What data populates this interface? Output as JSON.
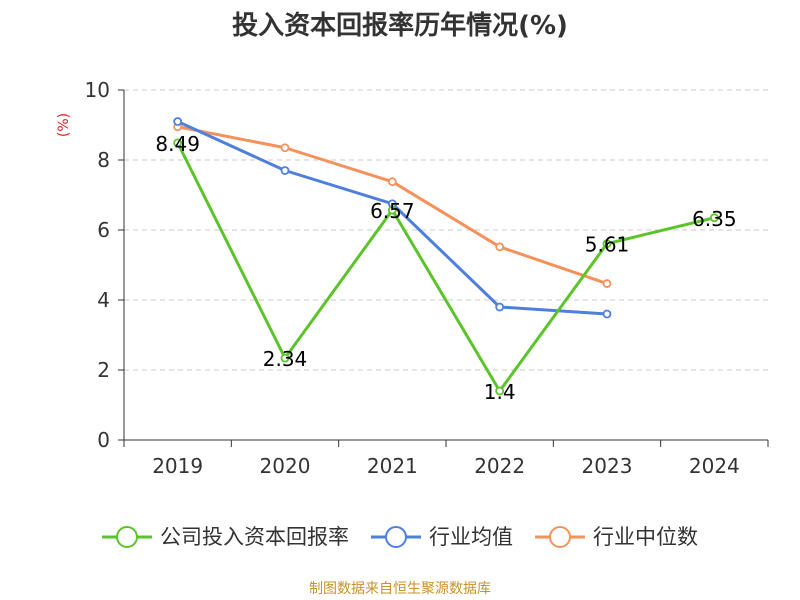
{
  "chart_data": {
    "type": "line",
    "title": "投入资本回报率历年情况(%)",
    "ylabel": "(%)",
    "xlabel": "",
    "categories": [
      "2019",
      "2020",
      "2021",
      "2022",
      "2023",
      "2024"
    ],
    "ylim": [
      0,
      10
    ],
    "yticks": [
      "0",
      "2",
      "4",
      "6",
      "8",
      "10"
    ],
    "grid": true,
    "legend_position": "bottom",
    "series": [
      {
        "name": "公司投入资本回报率",
        "color": "#5cc42b",
        "values": [
          8.49,
          2.34,
          6.57,
          1.4,
          5.61,
          6.35
        ],
        "labels": [
          "8.49",
          "2.34",
          "6.57",
          "1.4",
          "5.61",
          "6.35"
        ]
      },
      {
        "name": "行业均值",
        "color": "#4e7fdc",
        "values": [
          9.1,
          7.7,
          6.75,
          3.8,
          3.6,
          null
        ]
      },
      {
        "name": "行业中位数",
        "color": "#f5915a",
        "values": [
          8.95,
          8.35,
          7.38,
          5.52,
          4.47,
          null
        ]
      }
    ],
    "source": "制图数据来自恒生聚源数据库"
  }
}
